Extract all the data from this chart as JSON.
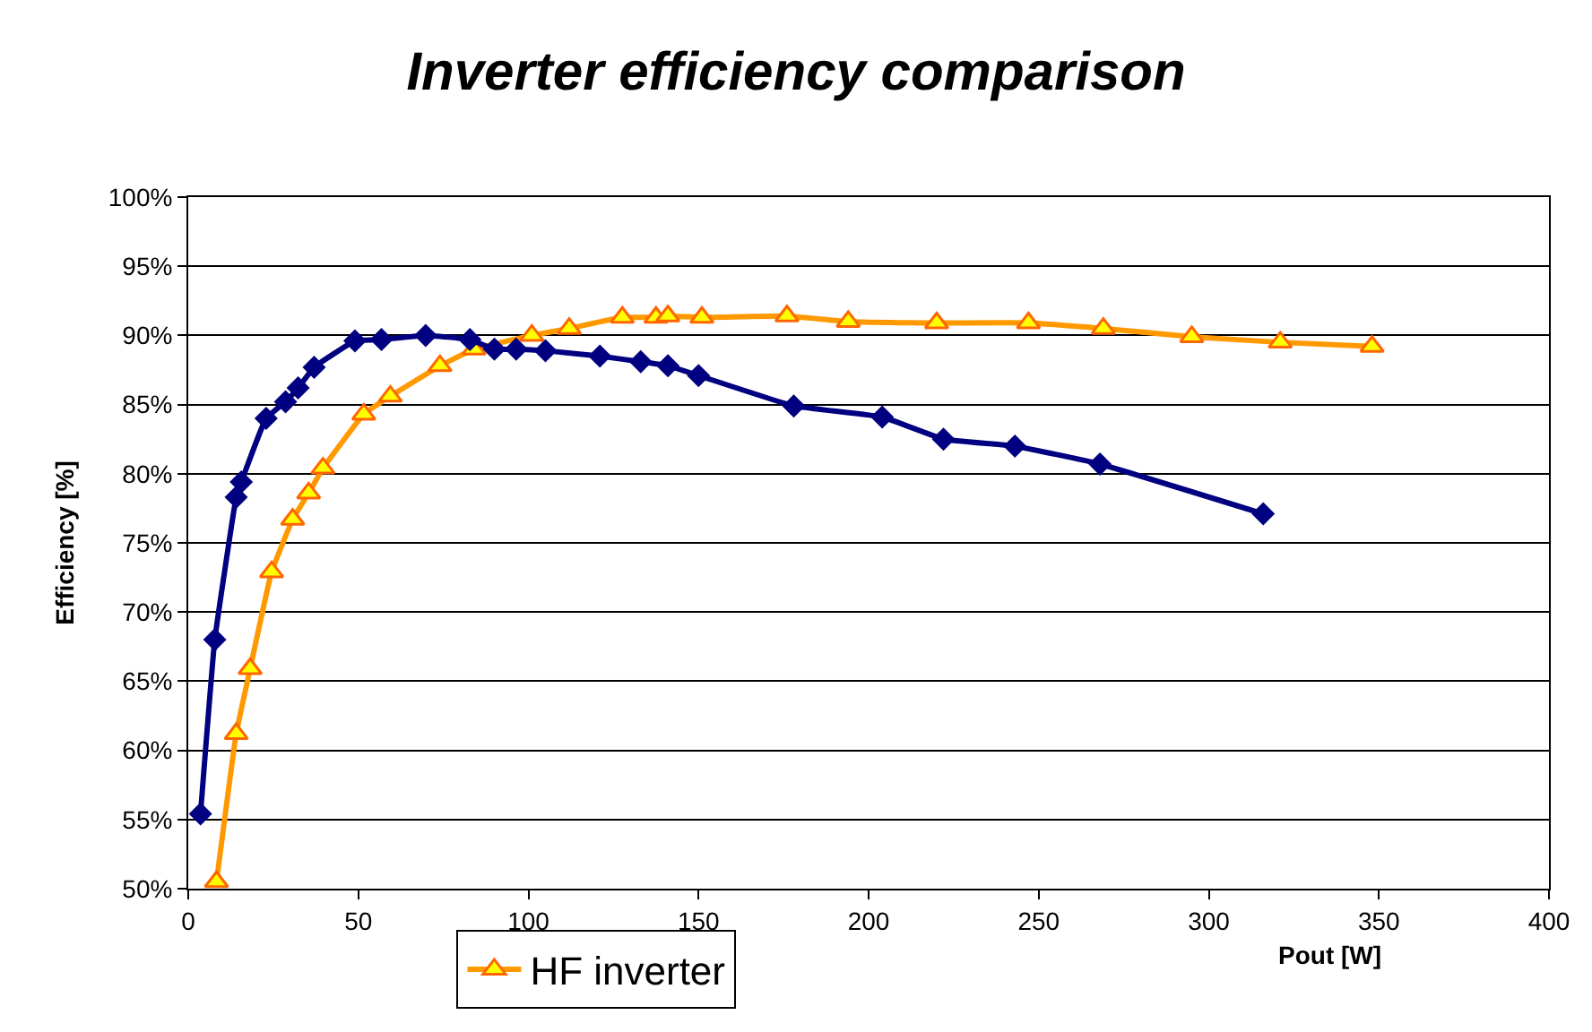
{
  "chart_data": {
    "type": "line",
    "title": "Inverter efficiency comparison",
    "xlabel": "Pout [W]",
    "ylabel": "Efficiency [%]",
    "xlim": [
      0,
      400
    ],
    "xticks": [
      0,
      50,
      100,
      150,
      200,
      250,
      300,
      350,
      400
    ],
    "ylim": [
      50,
      100
    ],
    "yticks": [
      {
        "value": 50,
        "label": "50%"
      },
      {
        "value": 55,
        "label": "55%"
      },
      {
        "value": 60,
        "label": "60%"
      },
      {
        "value": 65,
        "label": "65%"
      },
      {
        "value": 70,
        "label": "70%"
      },
      {
        "value": 75,
        "label": "75%"
      },
      {
        "value": 80,
        "label": "80%"
      },
      {
        "value": 85,
        "label": "85%"
      },
      {
        "value": 90,
        "label": "90%"
      },
      {
        "value": 95,
        "label": "95%"
      },
      {
        "value": 100,
        "label": "100%"
      }
    ],
    "grid": "y",
    "legend": "bottom",
    "line_style": "solid",
    "series": [
      {
        "name": "HF inverter",
        "color": "#ff9900",
        "marker": "triangle",
        "x": [
          8.3,
          14.1,
          18.2,
          24.5,
          30.7,
          35.4,
          39.6,
          51.6,
          59.4,
          74,
          84,
          101,
          112,
          127.6,
          137.5,
          141,
          151,
          176,
          194,
          220,
          247,
          269,
          295,
          321,
          348
        ],
        "values": [
          50.5,
          61.2,
          65.9,
          72.9,
          76.7,
          78.6,
          80.4,
          84.3,
          85.6,
          87.8,
          89.0,
          90.0,
          90.5,
          91.3,
          91.3,
          91.4,
          91.3,
          91.4,
          91.0,
          90.9,
          90.9,
          90.5,
          89.9,
          89.5,
          89.2
        ]
      },
      {
        "color": "#000080",
        "marker": "diamond",
        "x": [
          3.6,
          7.8,
          14.1,
          15.6,
          22.9,
          28.6,
          32.3,
          37.0,
          49,
          56.8,
          69.8,
          82.8,
          90,
          96.4,
          105,
          121,
          133,
          141,
          150,
          178,
          204,
          222,
          243,
          268,
          316
        ],
        "values": [
          55.4,
          68.0,
          78.3,
          79.4,
          84.0,
          85.2,
          86.2,
          87.7,
          89.6,
          89.7,
          90.0,
          89.7,
          89.0,
          89.0,
          88.9,
          88.5,
          88.1,
          87.8,
          87.1,
          84.9,
          84.1,
          82.5,
          82.0,
          80.7,
          77.1
        ]
      }
    ]
  }
}
